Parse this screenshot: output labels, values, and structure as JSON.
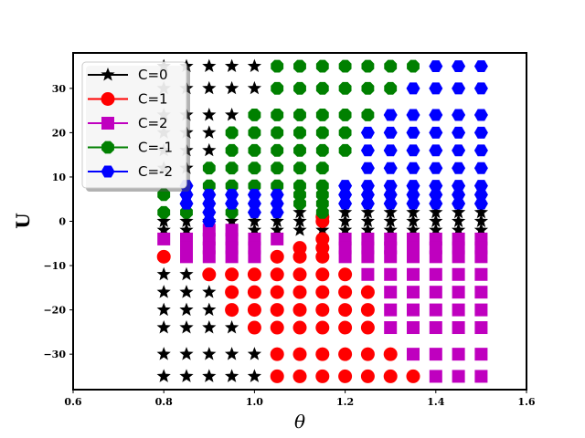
{
  "chart_data": {
    "type": "scatter",
    "xlabel": "θ",
    "ylabel": "U",
    "xlim": [
      0.6,
      1.6
    ],
    "ylim": [
      -38,
      38
    ],
    "xticks": [
      0.6,
      0.8,
      1.0,
      1.2,
      1.4,
      1.6
    ],
    "xtick_labels": [
      "0.6",
      "0.8",
      "1.0",
      "1.2",
      "1.4",
      "1.6"
    ],
    "yticks": [
      -30,
      -20,
      -10,
      0,
      10,
      20,
      30
    ],
    "ytick_labels": [
      "−30",
      "−20",
      "−10",
      "0",
      "10",
      "20",
      "30"
    ],
    "grid": false,
    "legend_position": "top-left",
    "series": [
      {
        "name": "C=0",
        "color": "#000000",
        "marker": "star",
        "points": [
          [
            0.8,
            35
          ],
          [
            0.85,
            35
          ],
          [
            0.9,
            35
          ],
          [
            0.95,
            35
          ],
          [
            1.0,
            35
          ],
          [
            0.8,
            30
          ],
          [
            0.85,
            30
          ],
          [
            0.9,
            30
          ],
          [
            0.95,
            30
          ],
          [
            1.0,
            30
          ],
          [
            0.8,
            24
          ],
          [
            0.85,
            24
          ],
          [
            0.9,
            24
          ],
          [
            0.95,
            24
          ],
          [
            0.8,
            20
          ],
          [
            0.85,
            20
          ],
          [
            0.9,
            20
          ],
          [
            0.8,
            16
          ],
          [
            0.85,
            16
          ],
          [
            0.9,
            16
          ],
          [
            0.8,
            12
          ],
          [
            0.85,
            12
          ],
          [
            0.8,
            0
          ],
          [
            0.85,
            0
          ],
          [
            0.9,
            0
          ],
          [
            0.95,
            0
          ],
          [
            1.0,
            0
          ],
          [
            1.05,
            0
          ],
          [
            0.8,
            -2
          ],
          [
            0.85,
            -2
          ],
          [
            1.0,
            -2
          ],
          [
            1.05,
            -2
          ],
          [
            1.1,
            2
          ],
          [
            1.1,
            0
          ],
          [
            1.1,
            -2
          ],
          [
            1.15,
            -2
          ],
          [
            1.2,
            2
          ],
          [
            1.2,
            0
          ],
          [
            1.2,
            -2
          ],
          [
            1.25,
            2
          ],
          [
            1.25,
            0
          ],
          [
            1.25,
            -2
          ],
          [
            1.3,
            2
          ],
          [
            1.3,
            0
          ],
          [
            1.3,
            -2
          ],
          [
            1.35,
            2
          ],
          [
            1.35,
            0
          ],
          [
            1.35,
            -2
          ],
          [
            1.4,
            2
          ],
          [
            1.4,
            0
          ],
          [
            1.4,
            -2
          ],
          [
            1.45,
            2
          ],
          [
            1.45,
            0
          ],
          [
            1.45,
            -2
          ],
          [
            1.5,
            2
          ],
          [
            1.5,
            0
          ],
          [
            1.5,
            -2
          ],
          [
            0.8,
            -12
          ],
          [
            0.85,
            -12
          ],
          [
            0.8,
            -16
          ],
          [
            0.85,
            -16
          ],
          [
            0.9,
            -16
          ],
          [
            0.8,
            -20
          ],
          [
            0.85,
            -20
          ],
          [
            0.9,
            -20
          ],
          [
            0.8,
            -24
          ],
          [
            0.85,
            -24
          ],
          [
            0.9,
            -24
          ],
          [
            0.95,
            -24
          ],
          [
            0.8,
            -30
          ],
          [
            0.85,
            -30
          ],
          [
            0.9,
            -30
          ],
          [
            0.95,
            -30
          ],
          [
            1.0,
            -30
          ],
          [
            0.8,
            -35
          ],
          [
            0.85,
            -35
          ],
          [
            0.9,
            -35
          ],
          [
            0.95,
            -35
          ],
          [
            1.0,
            -35
          ]
        ]
      },
      {
        "name": "C=1",
        "color": "#ff0000",
        "marker": "circle",
        "points": [
          [
            0.8,
            -8
          ],
          [
            1.05,
            -8
          ],
          [
            1.1,
            -8
          ],
          [
            1.15,
            -8
          ],
          [
            1.1,
            -6
          ],
          [
            1.15,
            -6
          ],
          [
            1.15,
            -4
          ],
          [
            1.15,
            1
          ],
          [
            1.15,
            0
          ],
          [
            0.9,
            -12
          ],
          [
            0.95,
            -12
          ],
          [
            1.0,
            -12
          ],
          [
            1.05,
            -12
          ],
          [
            1.1,
            -12
          ],
          [
            1.15,
            -12
          ],
          [
            1.2,
            -12
          ],
          [
            0.95,
            -16
          ],
          [
            1.0,
            -16
          ],
          [
            1.05,
            -16
          ],
          [
            1.1,
            -16
          ],
          [
            1.15,
            -16
          ],
          [
            1.2,
            -16
          ],
          [
            1.25,
            -16
          ],
          [
            0.95,
            -20
          ],
          [
            1.0,
            -20
          ],
          [
            1.05,
            -20
          ],
          [
            1.1,
            -20
          ],
          [
            1.15,
            -20
          ],
          [
            1.2,
            -20
          ],
          [
            1.25,
            -20
          ],
          [
            1.0,
            -24
          ],
          [
            1.05,
            -24
          ],
          [
            1.1,
            -24
          ],
          [
            1.15,
            -24
          ],
          [
            1.2,
            -24
          ],
          [
            1.25,
            -24
          ],
          [
            1.05,
            -30
          ],
          [
            1.1,
            -30
          ],
          [
            1.15,
            -30
          ],
          [
            1.2,
            -30
          ],
          [
            1.25,
            -30
          ],
          [
            1.3,
            -30
          ],
          [
            1.05,
            -35
          ],
          [
            1.1,
            -35
          ],
          [
            1.15,
            -35
          ],
          [
            1.2,
            -35
          ],
          [
            1.25,
            -35
          ],
          [
            1.3,
            -35
          ],
          [
            1.35,
            -35
          ]
        ]
      },
      {
        "name": "C=2",
        "color": "#bf00bf",
        "marker": "square",
        "points": [
          [
            0.8,
            -4
          ],
          [
            0.85,
            -4
          ],
          [
            0.85,
            -6
          ],
          [
            0.85,
            -8
          ],
          [
            0.9,
            -2
          ],
          [
            0.9,
            -4
          ],
          [
            0.9,
            -6
          ],
          [
            0.9,
            -8
          ],
          [
            0.95,
            -2
          ],
          [
            0.95,
            -4
          ],
          [
            0.95,
            -6
          ],
          [
            0.95,
            -8
          ],
          [
            1.0,
            -4
          ],
          [
            1.0,
            -6
          ],
          [
            1.0,
            -8
          ],
          [
            1.05,
            -4
          ],
          [
            1.2,
            -4
          ],
          [
            1.2,
            -6
          ],
          [
            1.2,
            -8
          ],
          [
            1.25,
            -4
          ],
          [
            1.25,
            -6
          ],
          [
            1.25,
            -8
          ],
          [
            1.25,
            -12
          ],
          [
            1.3,
            -4
          ],
          [
            1.3,
            -6
          ],
          [
            1.3,
            -8
          ],
          [
            1.3,
            -12
          ],
          [
            1.3,
            -16
          ],
          [
            1.3,
            -20
          ],
          [
            1.3,
            -24
          ],
          [
            1.35,
            -4
          ],
          [
            1.35,
            -6
          ],
          [
            1.35,
            -8
          ],
          [
            1.35,
            -12
          ],
          [
            1.35,
            -16
          ],
          [
            1.35,
            -20
          ],
          [
            1.35,
            -24
          ],
          [
            1.35,
            -30
          ],
          [
            1.4,
            -4
          ],
          [
            1.4,
            -6
          ],
          [
            1.4,
            -8
          ],
          [
            1.4,
            -12
          ],
          [
            1.4,
            -16
          ],
          [
            1.4,
            -20
          ],
          [
            1.4,
            -24
          ],
          [
            1.4,
            -30
          ],
          [
            1.4,
            -35
          ],
          [
            1.45,
            -4
          ],
          [
            1.45,
            -6
          ],
          [
            1.45,
            -8
          ],
          [
            1.45,
            -12
          ],
          [
            1.45,
            -16
          ],
          [
            1.45,
            -20
          ],
          [
            1.45,
            -24
          ],
          [
            1.45,
            -30
          ],
          [
            1.45,
            -35
          ],
          [
            1.5,
            -4
          ],
          [
            1.5,
            -6
          ],
          [
            1.5,
            -8
          ],
          [
            1.5,
            -12
          ],
          [
            1.5,
            -16
          ],
          [
            1.5,
            -20
          ],
          [
            1.5,
            -24
          ],
          [
            1.5,
            -30
          ],
          [
            1.5,
            -35
          ]
        ]
      },
      {
        "name": "C=-1",
        "color": "#008000",
        "marker": "octagon",
        "points": [
          [
            1.05,
            35
          ],
          [
            1.1,
            35
          ],
          [
            1.15,
            35
          ],
          [
            1.2,
            35
          ],
          [
            1.25,
            35
          ],
          [
            1.3,
            35
          ],
          [
            1.35,
            35
          ],
          [
            1.05,
            30
          ],
          [
            1.1,
            30
          ],
          [
            1.15,
            30
          ],
          [
            1.2,
            30
          ],
          [
            1.25,
            30
          ],
          [
            1.3,
            30
          ],
          [
            1.0,
            24
          ],
          [
            1.05,
            24
          ],
          [
            1.1,
            24
          ],
          [
            1.15,
            24
          ],
          [
            1.2,
            24
          ],
          [
            1.25,
            24
          ],
          [
            0.95,
            20
          ],
          [
            1.0,
            20
          ],
          [
            1.05,
            20
          ],
          [
            1.1,
            20
          ],
          [
            1.15,
            20
          ],
          [
            1.2,
            20
          ],
          [
            0.95,
            16
          ],
          [
            1.0,
            16
          ],
          [
            1.05,
            16
          ],
          [
            1.1,
            16
          ],
          [
            1.15,
            16
          ],
          [
            1.2,
            16
          ],
          [
            0.9,
            12
          ],
          [
            0.95,
            12
          ],
          [
            1.0,
            12
          ],
          [
            1.05,
            12
          ],
          [
            1.1,
            12
          ],
          [
            1.15,
            12
          ],
          [
            0.9,
            8
          ],
          [
            0.95,
            8
          ],
          [
            1.0,
            8
          ],
          [
            1.05,
            8
          ],
          [
            1.1,
            8
          ],
          [
            1.15,
            8
          ],
          [
            0.8,
            6
          ],
          [
            1.1,
            6
          ],
          [
            1.15,
            6
          ],
          [
            1.1,
            4
          ],
          [
            1.15,
            4
          ],
          [
            1.15,
            2
          ],
          [
            0.8,
            2
          ],
          [
            0.85,
            2
          ],
          [
            0.95,
            2
          ]
        ]
      },
      {
        "name": "C=-2",
        "color": "#0000ff",
        "marker": "hexagon",
        "points": [
          [
            1.4,
            35
          ],
          [
            1.45,
            35
          ],
          [
            1.5,
            35
          ],
          [
            1.35,
            30
          ],
          [
            1.4,
            30
          ],
          [
            1.45,
            30
          ],
          [
            1.5,
            30
          ],
          [
            1.3,
            24
          ],
          [
            1.35,
            24
          ],
          [
            1.4,
            24
          ],
          [
            1.45,
            24
          ],
          [
            1.5,
            24
          ],
          [
            1.25,
            20
          ],
          [
            1.3,
            20
          ],
          [
            1.35,
            20
          ],
          [
            1.4,
            20
          ],
          [
            1.45,
            20
          ],
          [
            1.5,
            20
          ],
          [
            1.25,
            16
          ],
          [
            1.3,
            16
          ],
          [
            1.35,
            16
          ],
          [
            1.4,
            16
          ],
          [
            1.45,
            16
          ],
          [
            1.5,
            16
          ],
          [
            1.25,
            12
          ],
          [
            1.3,
            12
          ],
          [
            1.35,
            12
          ],
          [
            1.4,
            12
          ],
          [
            1.45,
            12
          ],
          [
            1.5,
            12
          ],
          [
            1.2,
            8
          ],
          [
            1.25,
            8
          ],
          [
            1.3,
            8
          ],
          [
            1.35,
            8
          ],
          [
            1.4,
            8
          ],
          [
            1.45,
            8
          ],
          [
            1.5,
            8
          ],
          [
            0.85,
            8
          ],
          [
            0.85,
            6
          ],
          [
            0.85,
            4
          ],
          [
            0.9,
            6
          ],
          [
            0.9,
            4
          ],
          [
            0.9,
            2
          ],
          [
            0.9,
            0
          ],
          [
            0.95,
            6
          ],
          [
            0.95,
            4
          ],
          [
            1.0,
            6
          ],
          [
            1.0,
            4
          ],
          [
            1.0,
            2
          ],
          [
            1.05,
            6
          ],
          [
            1.05,
            4
          ],
          [
            1.05,
            2
          ],
          [
            1.2,
            6
          ],
          [
            1.2,
            4
          ],
          [
            1.25,
            6
          ],
          [
            1.25,
            4
          ],
          [
            1.3,
            6
          ],
          [
            1.3,
            4
          ],
          [
            1.35,
            6
          ],
          [
            1.35,
            4
          ],
          [
            1.4,
            6
          ],
          [
            1.4,
            4
          ],
          [
            1.45,
            6
          ],
          [
            1.45,
            4
          ],
          [
            1.5,
            6
          ],
          [
            1.5,
            4
          ]
        ]
      }
    ]
  }
}
